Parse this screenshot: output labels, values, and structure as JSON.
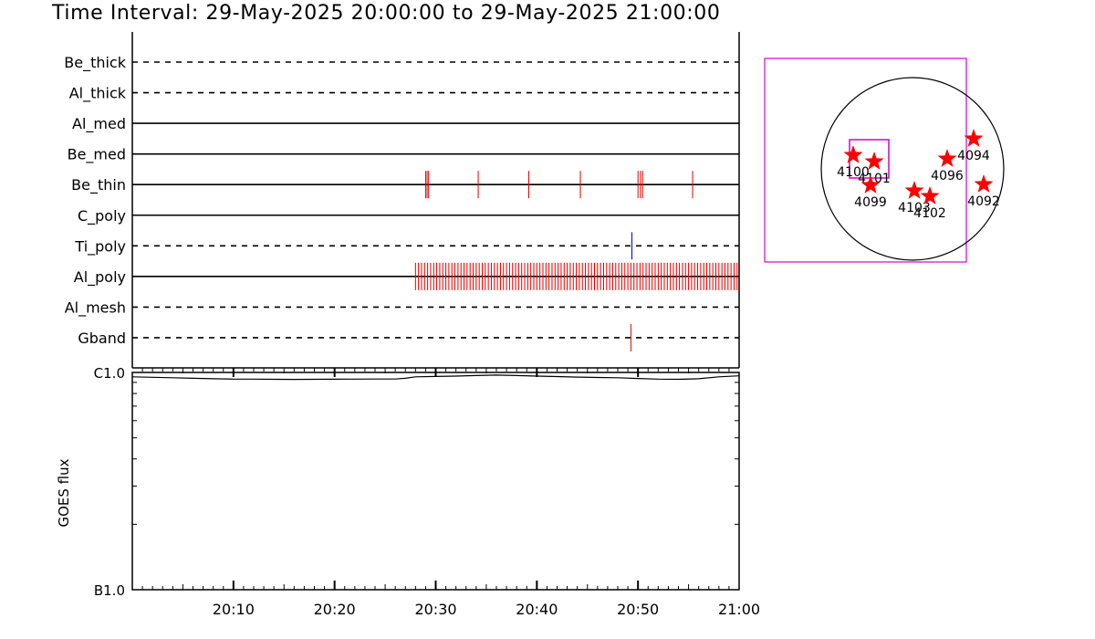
{
  "title": "Time Interval: 29-May-2025 20:00:00 to 29-May-2025 21:00:00",
  "colors": {
    "event": "#e00000",
    "ti_event": "#0000cc",
    "box": "#d400d4",
    "star": "#ff0000",
    "axis": "#000000"
  },
  "chart_data": [
    {
      "type": "timeline",
      "x_unit": "minutes after 20:00",
      "xlim": [
        0,
        60
      ],
      "channels": [
        {
          "name": "Be_thick",
          "line": "dashed",
          "events": []
        },
        {
          "name": "Al_thick",
          "line": "dashed",
          "events": []
        },
        {
          "name": "Al_med",
          "line": "solid",
          "events": []
        },
        {
          "name": "Be_med",
          "line": "solid",
          "events": []
        },
        {
          "name": "Be_thin",
          "line": "solid",
          "events": [
            29.0,
            29.15,
            29.3,
            34.2,
            39.2,
            44.3,
            50.0,
            50.25,
            50.45,
            55.4
          ]
        },
        {
          "name": "C_poly",
          "line": "solid",
          "events": []
        },
        {
          "name": "Ti_poly",
          "line": "dashed",
          "events": [
            49.4
          ],
          "event_color": "blue"
        },
        {
          "name": "Al_poly",
          "line": "solid",
          "events": [
            28.0,
            28.3,
            28.6,
            28.9,
            29.2,
            29.5,
            29.8,
            30.1,
            30.4,
            30.7,
            31.0,
            31.3,
            31.6,
            31.9,
            32.2,
            32.5,
            32.8,
            33.1,
            33.4,
            33.7,
            34.0,
            34.3,
            34.6,
            34.9,
            35.2,
            35.5,
            35.8,
            36.1,
            36.4,
            36.7,
            37.0,
            37.3,
            37.6,
            37.9,
            38.2,
            38.5,
            38.8,
            39.1,
            39.4,
            39.7,
            40.0,
            40.3,
            40.6,
            40.9,
            41.2,
            41.5,
            41.8,
            42.1,
            42.4,
            42.7,
            43.0,
            43.3,
            43.6,
            43.9,
            44.2,
            44.5,
            44.8,
            45.1,
            45.4,
            45.7,
            46.0,
            46.3,
            46.6,
            46.9,
            47.2,
            47.5,
            47.8,
            48.1,
            48.4,
            48.7,
            49.0,
            49.3,
            49.6,
            49.9,
            50.2,
            50.5,
            50.8,
            51.1,
            51.4,
            51.7,
            52.0,
            52.3,
            52.6,
            52.9,
            53.2,
            53.5,
            53.8,
            54.1,
            54.4,
            54.7,
            55.0,
            55.3,
            55.6,
            55.9,
            56.2,
            56.5,
            56.8,
            57.1,
            57.4,
            57.7,
            58.0,
            58.3,
            58.6,
            58.9,
            59.2,
            59.5,
            59.8
          ]
        },
        {
          "name": "Al_mesh",
          "line": "dashed",
          "events": []
        },
        {
          "name": "Gband",
          "line": "dashed",
          "events": [
            49.3
          ]
        }
      ]
    },
    {
      "type": "line",
      "ylabel": "GOES flux",
      "y_scale": "log",
      "y_ticklabels": [
        "B1.0",
        "C1.0"
      ],
      "ylim": [
        1e-07,
        1e-06
      ],
      "xlim": [
        0,
        60
      ],
      "x": [
        0,
        2,
        4,
        6,
        8,
        10,
        12,
        14,
        16,
        18,
        20,
        22,
        24,
        26,
        27,
        28,
        30,
        32,
        34,
        36,
        38,
        40,
        42,
        44,
        46,
        48,
        50,
        52,
        54,
        56,
        58,
        60
      ],
      "y": [
        9.55e-07,
        9.5e-07,
        9.45e-07,
        9.4e-07,
        9.35e-07,
        9.32e-07,
        9.32e-07,
        9.3e-07,
        9.29e-07,
        9.3e-07,
        9.31e-07,
        9.32e-07,
        9.33e-07,
        9.33e-07,
        9.4e-07,
        9.55e-07,
        9.58e-07,
        9.62e-07,
        9.68e-07,
        9.72e-07,
        9.68e-07,
        9.62e-07,
        9.57e-07,
        9.52e-07,
        9.48e-07,
        9.45e-07,
        9.38e-07,
        9.32e-07,
        9.3e-07,
        9.35e-07,
        9.55e-07,
        9.65e-07
      ],
      "xticks": [
        10,
        20,
        30,
        40,
        50,
        60
      ],
      "xticklabels": [
        "20:10",
        "20:20",
        "20:30",
        "20:40",
        "20:50",
        "21:00"
      ]
    },
    {
      "type": "scatter",
      "description_of_axes": "solar disk map",
      "points": [
        {
          "label": "4100",
          "x": -0.65,
          "y": 0.15
        },
        {
          "label": "4101",
          "x": -0.42,
          "y": 0.08
        },
        {
          "label": "4099",
          "x": -0.46,
          "y": -0.18
        },
        {
          "label": "4103",
          "x": 0.02,
          "y": -0.24
        },
        {
          "label": "4102",
          "x": 0.19,
          "y": -0.3
        },
        {
          "label": "4096",
          "x": 0.38,
          "y": 0.11
        },
        {
          "label": "4094",
          "x": 0.67,
          "y": 0.33
        },
        {
          "label": "4092",
          "x": 0.78,
          "y": -0.17
        }
      ]
    }
  ]
}
